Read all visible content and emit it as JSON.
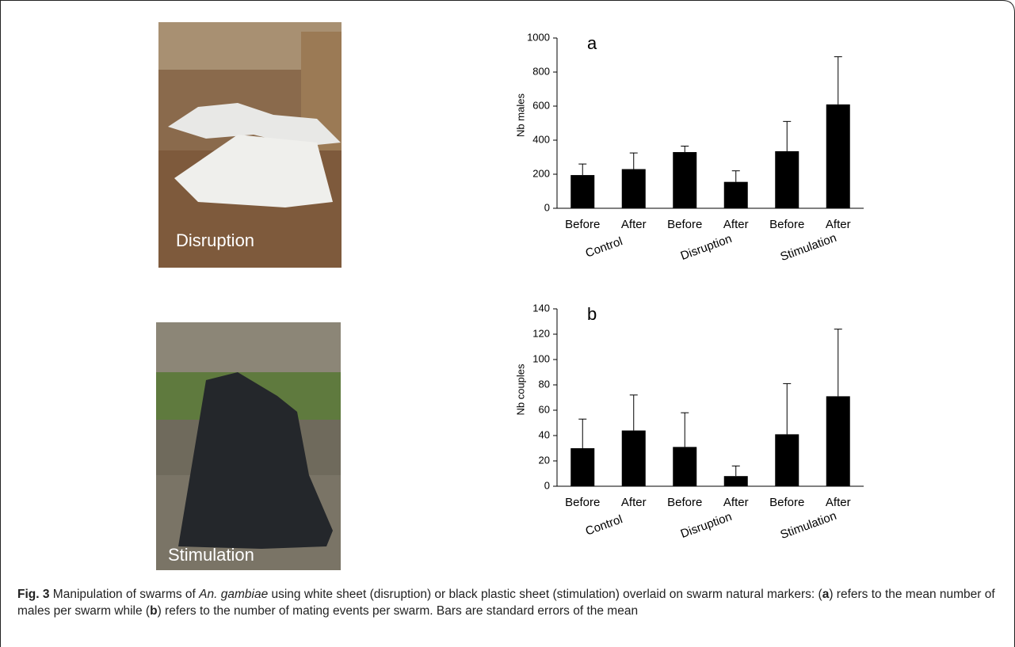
{
  "photos": [
    {
      "label": "Disruption"
    },
    {
      "label": "Stimulation"
    }
  ],
  "chart_data": [
    {
      "type": "bar",
      "panel": "a",
      "ylabel": "Nb males",
      "categories": [
        "Before",
        "After",
        "Before",
        "After",
        "Before",
        "After"
      ],
      "groups": [
        "Control",
        "Disruption",
        "Stimulation"
      ],
      "values": [
        195,
        230,
        330,
        155,
        335,
        610
      ],
      "errors": [
        65,
        95,
        35,
        65,
        175,
        280
      ],
      "color": "#000000",
      "ylim": [
        0,
        1000
      ],
      "yticks": [
        0,
        200,
        400,
        600,
        800,
        1000
      ]
    },
    {
      "type": "bar",
      "panel": "b",
      "ylabel": "Nb couples",
      "categories": [
        "Before",
        "After",
        "Before",
        "After",
        "Before",
        "After"
      ],
      "groups": [
        "Control",
        "Disruption",
        "Stimulation"
      ],
      "values": [
        30,
        44,
        31,
        8,
        41,
        71
      ],
      "errors": [
        23,
        28,
        27,
        8,
        40,
        53
      ],
      "color": "#000000",
      "ylim": [
        0,
        140
      ],
      "yticks": [
        0,
        20,
        40,
        60,
        80,
        100,
        120,
        140
      ]
    }
  ],
  "caption": [
    "Fig. 3",
    " Manipulation of swarms of ",
    "An. gambiae",
    " using white sheet (disruption) or black plastic sheet (stimulation) overlaid on swarm natural markers: (",
    "a",
    ") refers to the mean number of males per swarm while (",
    "b",
    ") refers to the number of mating events per swarm. Bars are standard errors of the mean"
  ]
}
